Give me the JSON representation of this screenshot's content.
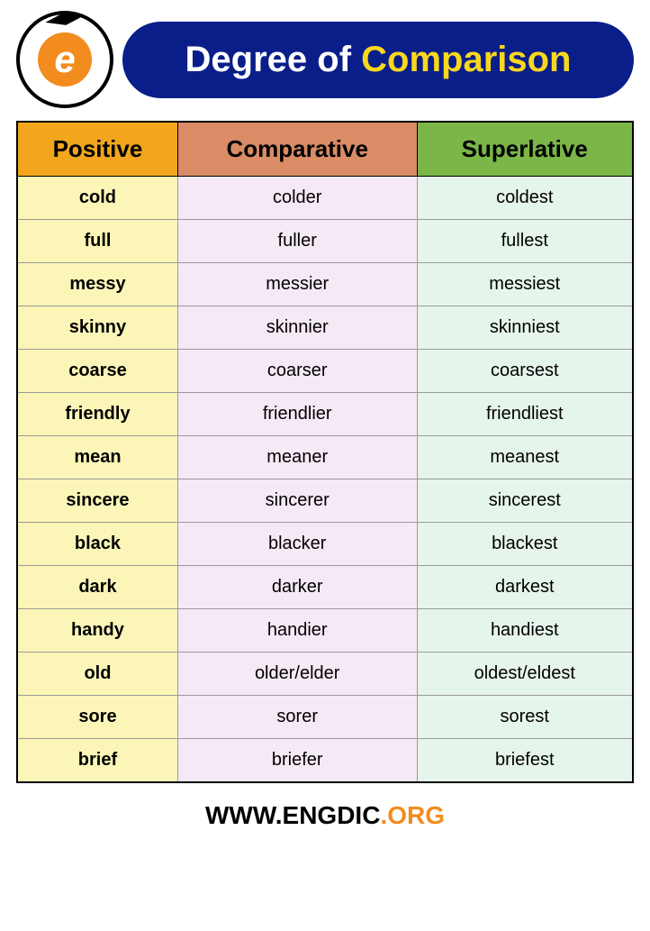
{
  "header": {
    "title_part1": "Degree of ",
    "title_part2": "Comparison",
    "logo_letter": "e",
    "logo_url_text": "www.EngDic.org",
    "colors": {
      "pill_bg": "#0a1e8a",
      "title_part1_color": "#ffffff",
      "title_part2_color": "#f9d71c",
      "logo_inner_bg": "#f28c1e"
    }
  },
  "table": {
    "columns": [
      {
        "key": "positive",
        "label": "Positive",
        "header_bg": "#f2a61e",
        "cell_bg": "#fbf6b8",
        "cell_bold": true
      },
      {
        "key": "comparative",
        "label": "Comparative",
        "header_bg": "#d98c66",
        "cell_bg": "#f6e9f6",
        "cell_bold": false
      },
      {
        "key": "superlative",
        "label": "Superlative",
        "header_bg": "#7ab648",
        "cell_bg": "#e6f5eb",
        "cell_bold": false
      }
    ],
    "rows": [
      {
        "positive": "cold",
        "comparative": "colder",
        "superlative": "coldest"
      },
      {
        "positive": "full",
        "comparative": "fuller",
        "superlative": "fullest"
      },
      {
        "positive": "messy",
        "comparative": "messier",
        "superlative": "messiest"
      },
      {
        "positive": "skinny",
        "comparative": "skinnier",
        "superlative": "skinniest"
      },
      {
        "positive": "coarse",
        "comparative": "coarser",
        "superlative": "coarsest"
      },
      {
        "positive": "friendly",
        "comparative": "friendlier",
        "superlative": "friendliest"
      },
      {
        "positive": "mean",
        "comparative": "meaner",
        "superlative": "meanest"
      },
      {
        "positive": "sincere",
        "comparative": "sincerer",
        "superlative": "sincerest"
      },
      {
        "positive": "black",
        "comparative": "blacker",
        "superlative": "blackest"
      },
      {
        "positive": "dark",
        "comparative": "darker",
        "superlative": "darkest"
      },
      {
        "positive": "handy",
        "comparative": "handier",
        "superlative": "handiest"
      },
      {
        "positive": "old",
        "comparative": "older/elder",
        "superlative": "oldest/eldest"
      },
      {
        "positive": "sore",
        "comparative": "sorer",
        "superlative": "sorest"
      },
      {
        "positive": "brief",
        "comparative": "briefer",
        "superlative": "briefest"
      }
    ],
    "header_fontsize": 26,
    "cell_fontsize": 20,
    "border_color": "#9a9a9a",
    "outer_border_color": "#000000"
  },
  "footer": {
    "part1": "WWW.",
    "part2": "ENGDIC",
    "part3": ".ORG",
    "colors": {
      "part1": "#000000",
      "part2": "#000000",
      "part3": "#f28c1e"
    }
  }
}
